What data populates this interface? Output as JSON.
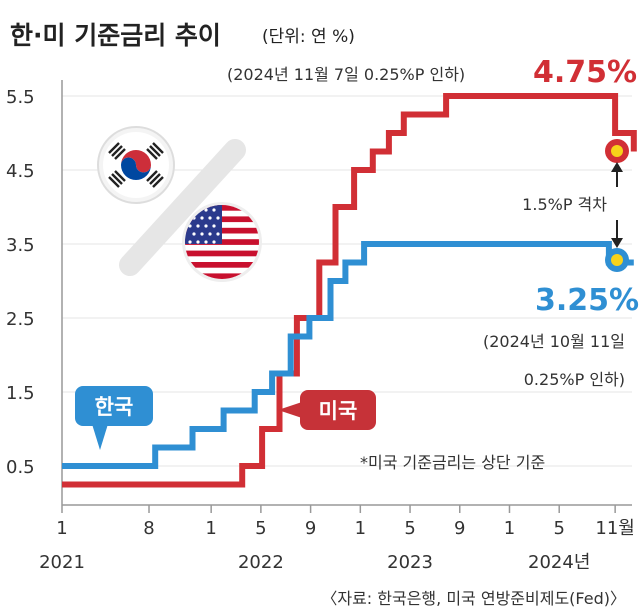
{
  "title": "한·미 기준금리 추이",
  "unit": "(단위: 연 %)",
  "source": "〈자료: 한국은행, 미국 연방준비제도(Fed)〉",
  "footnote": "*미국 기준금리는 상단 기준",
  "colors": {
    "us": "#d12f35",
    "kr": "#2f8fd3",
    "grid": "#e5e5e5",
    "axis": "#999999"
  },
  "annotations": {
    "us_note": "(2024년 11월 7일 0.25%P 인하)",
    "us_value": "4.75%",
    "kr_value": "3.25%",
    "kr_note_line1": "(2024년 10월 11일",
    "kr_note_line2": "0.25%P 인하)",
    "gap_label": "1.5%P 격차",
    "kr_badge": "한국",
    "us_badge": "미국"
  },
  "icons": [
    "korea-flag-icon",
    "usa-flag-icon"
  ],
  "chart_data": {
    "type": "line",
    "step": true,
    "title": "한·미 기준금리 추이",
    "ylabel": "(단위: 연 %)",
    "ylim": [
      0,
      5.75
    ],
    "yticks": [
      "0.5",
      "1.5",
      "2.5",
      "3.5",
      "4.5",
      "5.5"
    ],
    "xlim": [
      0,
      46.5
    ],
    "xticks": [
      {
        "month": 0,
        "label": "1",
        "year": "2021"
      },
      {
        "month": 7,
        "label": "8",
        "year": ""
      },
      {
        "month": 12,
        "label": "1",
        "year": ""
      },
      {
        "month": 16,
        "label": "5",
        "year": "2022"
      },
      {
        "month": 20,
        "label": "9",
        "year": ""
      },
      {
        "month": 24,
        "label": "1",
        "year": ""
      },
      {
        "month": 28,
        "label": "5",
        "year": "2023"
      },
      {
        "month": 32,
        "label": "9",
        "year": ""
      },
      {
        "month": 36,
        "label": "1",
        "year": ""
      },
      {
        "month": 40,
        "label": "5",
        "year": "2024년"
      },
      {
        "month": 44.5,
        "label": "11월",
        "year": ""
      }
    ],
    "x_unit": "months since 2021-01",
    "series": [
      {
        "name": "미국",
        "points": [
          [
            0,
            0.25
          ],
          [
            14.5,
            0.25
          ],
          [
            14.5,
            0.5
          ],
          [
            16.1,
            0.5
          ],
          [
            16.1,
            1.0
          ],
          [
            17.5,
            1.0
          ],
          [
            17.5,
            1.75
          ],
          [
            18.9,
            1.75
          ],
          [
            18.9,
            2.5
          ],
          [
            20.7,
            2.5
          ],
          [
            20.7,
            3.25
          ],
          [
            22.0,
            3.25
          ],
          [
            22.0,
            4.0
          ],
          [
            23.5,
            4.0
          ],
          [
            23.5,
            4.5
          ],
          [
            25.0,
            4.5
          ],
          [
            25.0,
            4.75
          ],
          [
            26.3,
            4.75
          ],
          [
            26.3,
            5.0
          ],
          [
            27.5,
            5.0
          ],
          [
            27.5,
            5.25
          ],
          [
            30.9,
            5.25
          ],
          [
            30.9,
            5.5
          ],
          [
            44.5,
            5.5
          ],
          [
            44.5,
            5.0
          ],
          [
            46.0,
            5.0
          ],
          [
            46.0,
            4.75
          ]
        ]
      },
      {
        "name": "한국",
        "points": [
          [
            0,
            0.5
          ],
          [
            7.5,
            0.5
          ],
          [
            7.5,
            0.75
          ],
          [
            10.5,
            0.75
          ],
          [
            10.5,
            1.0
          ],
          [
            13.0,
            1.0
          ],
          [
            13.0,
            1.25
          ],
          [
            15.5,
            1.25
          ],
          [
            15.5,
            1.5
          ],
          [
            16.9,
            1.5
          ],
          [
            16.9,
            1.75
          ],
          [
            18.4,
            1.75
          ],
          [
            18.4,
            2.25
          ],
          [
            19.9,
            2.25
          ],
          [
            19.9,
            2.5
          ],
          [
            21.6,
            2.5
          ],
          [
            21.6,
            3.0
          ],
          [
            22.8,
            3.0
          ],
          [
            22.8,
            3.25
          ],
          [
            24.3,
            3.25
          ],
          [
            24.3,
            3.5
          ],
          [
            44.0,
            3.5
          ],
          [
            44.0,
            3.25
          ],
          [
            46.0,
            3.25
          ]
        ]
      }
    ]
  }
}
